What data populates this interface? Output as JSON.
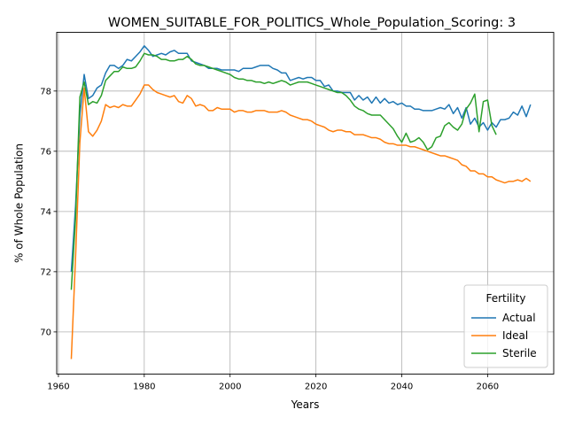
{
  "chart_data": {
    "type": "line",
    "title": "WOMEN_SUITABLE_FOR_POLITICS_Whole_Population_Scoring: 3",
    "xlabel": "Years",
    "ylabel": "% of Whole Population",
    "xlim": [
      1959.6,
      2075.4
    ],
    "ylim": [
      68.6,
      79.95
    ],
    "xticks": [
      1960,
      1980,
      2000,
      2020,
      2040,
      2060
    ],
    "yticks": [
      70,
      72,
      74,
      76,
      78
    ],
    "grid": true,
    "legend": {
      "title": "Fertility",
      "position": "lower right"
    },
    "series": [
      {
        "name": "Actual",
        "color": "#1f77b4",
        "points": [
          [
            1963,
            72.0
          ],
          [
            1964,
            74.2
          ],
          [
            1965,
            77.2
          ],
          [
            1966,
            78.55
          ],
          [
            1967,
            77.75
          ],
          [
            1968,
            77.85
          ],
          [
            1969,
            78.1
          ],
          [
            1970,
            78.2
          ],
          [
            1971,
            78.6
          ],
          [
            1972,
            78.85
          ],
          [
            1973,
            78.85
          ],
          [
            1974,
            78.75
          ],
          [
            1975,
            78.85
          ],
          [
            1976,
            79.05
          ],
          [
            1977,
            79.0
          ],
          [
            1978,
            79.15
          ],
          [
            1979,
            79.3
          ],
          [
            1980,
            79.5
          ],
          [
            1981,
            79.35
          ],
          [
            1982,
            79.15
          ],
          [
            1983,
            79.2
          ],
          [
            1984,
            79.25
          ],
          [
            1985,
            79.2
          ],
          [
            1986,
            79.3
          ],
          [
            1987,
            79.35
          ],
          [
            1988,
            79.25
          ],
          [
            1989,
            79.25
          ],
          [
            1990,
            79.25
          ],
          [
            1991,
            79.0
          ],
          [
            1992,
            78.95
          ],
          [
            1993,
            78.9
          ],
          [
            1994,
            78.85
          ],
          [
            1995,
            78.75
          ],
          [
            1996,
            78.75
          ],
          [
            1997,
            78.75
          ],
          [
            1998,
            78.7
          ],
          [
            1999,
            78.7
          ],
          [
            2000,
            78.7
          ],
          [
            2001,
            78.7
          ],
          [
            2002,
            78.65
          ],
          [
            2003,
            78.75
          ],
          [
            2004,
            78.75
          ],
          [
            2005,
            78.75
          ],
          [
            2006,
            78.8
          ],
          [
            2007,
            78.85
          ],
          [
            2008,
            78.85
          ],
          [
            2009,
            78.85
          ],
          [
            2010,
            78.75
          ],
          [
            2011,
            78.7
          ],
          [
            2012,
            78.6
          ],
          [
            2013,
            78.6
          ],
          [
            2014,
            78.35
          ],
          [
            2015,
            78.4
          ],
          [
            2016,
            78.45
          ],
          [
            2017,
            78.4
          ],
          [
            2018,
            78.45
          ],
          [
            2019,
            78.45
          ],
          [
            2020,
            78.35
          ],
          [
            2021,
            78.35
          ],
          [
            2022,
            78.15
          ],
          [
            2023,
            78.2
          ],
          [
            2024,
            78.0
          ],
          [
            2025,
            78.0
          ],
          [
            2026,
            77.95
          ],
          [
            2027,
            77.95
          ],
          [
            2028,
            77.95
          ],
          [
            2029,
            77.7
          ],
          [
            2030,
            77.85
          ],
          [
            2031,
            77.7
          ],
          [
            2032,
            77.8
          ],
          [
            2033,
            77.6
          ],
          [
            2034,
            77.8
          ],
          [
            2035,
            77.6
          ],
          [
            2036,
            77.75
          ],
          [
            2037,
            77.6
          ],
          [
            2038,
            77.65
          ],
          [
            2039,
            77.55
          ],
          [
            2040,
            77.6
          ],
          [
            2041,
            77.5
          ],
          [
            2042,
            77.5
          ],
          [
            2043,
            77.4
          ],
          [
            2044,
            77.4
          ],
          [
            2045,
            77.35
          ],
          [
            2046,
            77.35
          ],
          [
            2047,
            77.35
          ],
          [
            2048,
            77.4
          ],
          [
            2049,
            77.45
          ],
          [
            2050,
            77.4
          ],
          [
            2051,
            77.55
          ],
          [
            2052,
            77.25
          ],
          [
            2053,
            77.45
          ],
          [
            2054,
            77.1
          ],
          [
            2055,
            77.45
          ],
          [
            2056,
            76.9
          ],
          [
            2057,
            77.1
          ],
          [
            2058,
            76.8
          ],
          [
            2059,
            76.95
          ],
          [
            2060,
            76.7
          ],
          [
            2061,
            76.95
          ],
          [
            2062,
            76.8
          ],
          [
            2063,
            77.05
          ],
          [
            2064,
            77.05
          ],
          [
            2065,
            77.1
          ],
          [
            2066,
            77.3
          ],
          [
            2067,
            77.2
          ],
          [
            2068,
            77.5
          ],
          [
            2069,
            77.15
          ],
          [
            2070,
            77.55
          ]
        ]
      },
      {
        "name": "Ideal",
        "color": "#ff7f0e",
        "points": [
          [
            1963,
            69.1
          ],
          [
            1964,
            72.5
          ],
          [
            1965,
            76.3
          ],
          [
            1966,
            78.1
          ],
          [
            1967,
            76.65
          ],
          [
            1968,
            76.5
          ],
          [
            1969,
            76.7
          ],
          [
            1970,
            77.0
          ],
          [
            1971,
            77.55
          ],
          [
            1972,
            77.45
          ],
          [
            1973,
            77.5
          ],
          [
            1974,
            77.45
          ],
          [
            1975,
            77.55
          ],
          [
            1976,
            77.5
          ],
          [
            1977,
            77.5
          ],
          [
            1978,
            77.7
          ],
          [
            1979,
            77.9
          ],
          [
            1980,
            78.2
          ],
          [
            1981,
            78.2
          ],
          [
            1982,
            78.05
          ],
          [
            1983,
            77.95
          ],
          [
            1984,
            77.9
          ],
          [
            1985,
            77.85
          ],
          [
            1986,
            77.8
          ],
          [
            1987,
            77.85
          ],
          [
            1988,
            77.65
          ],
          [
            1989,
            77.6
          ],
          [
            1990,
            77.85
          ],
          [
            1991,
            77.75
          ],
          [
            1992,
            77.5
          ],
          [
            1993,
            77.55
          ],
          [
            1994,
            77.5
          ],
          [
            1995,
            77.35
          ],
          [
            1996,
            77.35
          ],
          [
            1997,
            77.45
          ],
          [
            1998,
            77.4
          ],
          [
            1999,
            77.4
          ],
          [
            2000,
            77.4
          ],
          [
            2001,
            77.3
          ],
          [
            2002,
            77.35
          ],
          [
            2003,
            77.35
          ],
          [
            2004,
            77.3
          ],
          [
            2005,
            77.3
          ],
          [
            2006,
            77.35
          ],
          [
            2007,
            77.35
          ],
          [
            2008,
            77.35
          ],
          [
            2009,
            77.3
          ],
          [
            2010,
            77.3
          ],
          [
            2011,
            77.3
          ],
          [
            2012,
            77.35
          ],
          [
            2013,
            77.3
          ],
          [
            2014,
            77.2
          ],
          [
            2015,
            77.15
          ],
          [
            2016,
            77.1
          ],
          [
            2017,
            77.05
          ],
          [
            2018,
            77.05
          ],
          [
            2019,
            77.0
          ],
          [
            2020,
            76.9
          ],
          [
            2021,
            76.85
          ],
          [
            2022,
            76.8
          ],
          [
            2023,
            76.7
          ],
          [
            2024,
            76.65
          ],
          [
            2025,
            76.7
          ],
          [
            2026,
            76.7
          ],
          [
            2027,
            76.65
          ],
          [
            2028,
            76.65
          ],
          [
            2029,
            76.55
          ],
          [
            2030,
            76.55
          ],
          [
            2031,
            76.55
          ],
          [
            2032,
            76.5
          ],
          [
            2033,
            76.45
          ],
          [
            2034,
            76.45
          ],
          [
            2035,
            76.4
          ],
          [
            2036,
            76.3
          ],
          [
            2037,
            76.25
          ],
          [
            2038,
            76.25
          ],
          [
            2039,
            76.2
          ],
          [
            2040,
            76.2
          ],
          [
            2041,
            76.2
          ],
          [
            2042,
            76.15
          ],
          [
            2043,
            76.15
          ],
          [
            2044,
            76.1
          ],
          [
            2045,
            76.05
          ],
          [
            2046,
            76.0
          ],
          [
            2047,
            75.95
          ],
          [
            2048,
            75.9
          ],
          [
            2049,
            75.85
          ],
          [
            2050,
            75.85
          ],
          [
            2051,
            75.8
          ],
          [
            2052,
            75.75
          ],
          [
            2053,
            75.7
          ],
          [
            2054,
            75.55
          ],
          [
            2055,
            75.5
          ],
          [
            2056,
            75.35
          ],
          [
            2057,
            75.35
          ],
          [
            2058,
            75.25
          ],
          [
            2059,
            75.25
          ],
          [
            2060,
            75.15
          ],
          [
            2061,
            75.15
          ],
          [
            2062,
            75.05
          ],
          [
            2063,
            75.0
          ],
          [
            2064,
            74.95
          ],
          [
            2065,
            75.0
          ],
          [
            2066,
            75.0
          ],
          [
            2067,
            75.05
          ],
          [
            2068,
            75.0
          ],
          [
            2069,
            75.1
          ],
          [
            2070,
            75.0
          ]
        ]
      },
      {
        "name": "Sterile",
        "color": "#2ca02c",
        "points": [
          [
            1963,
            71.4
          ],
          [
            1964,
            73.8
          ],
          [
            1965,
            77.8
          ],
          [
            1966,
            78.3
          ],
          [
            1967,
            77.55
          ],
          [
            1968,
            77.65
          ],
          [
            1969,
            77.6
          ],
          [
            1970,
            77.85
          ],
          [
            1971,
            78.35
          ],
          [
            1972,
            78.5
          ],
          [
            1973,
            78.65
          ],
          [
            1974,
            78.65
          ],
          [
            1975,
            78.8
          ],
          [
            1976,
            78.75
          ],
          [
            1977,
            78.75
          ],
          [
            1978,
            78.8
          ],
          [
            1979,
            79.0
          ],
          [
            1980,
            79.25
          ],
          [
            1981,
            79.2
          ],
          [
            1982,
            79.2
          ],
          [
            1983,
            79.15
          ],
          [
            1984,
            79.05
          ],
          [
            1985,
            79.05
          ],
          [
            1986,
            79.0
          ],
          [
            1987,
            79.0
          ],
          [
            1988,
            79.05
          ],
          [
            1989,
            79.05
          ],
          [
            1990,
            79.15
          ],
          [
            1991,
            79.05
          ],
          [
            1992,
            78.9
          ],
          [
            1993,
            78.85
          ],
          [
            1994,
            78.85
          ],
          [
            1995,
            78.8
          ],
          [
            1996,
            78.75
          ],
          [
            1997,
            78.7
          ],
          [
            1998,
            78.65
          ],
          [
            1999,
            78.6
          ],
          [
            2000,
            78.55
          ],
          [
            2001,
            78.45
          ],
          [
            2002,
            78.4
          ],
          [
            2003,
            78.4
          ],
          [
            2004,
            78.35
          ],
          [
            2005,
            78.35
          ],
          [
            2006,
            78.3
          ],
          [
            2007,
            78.3
          ],
          [
            2008,
            78.25
          ],
          [
            2009,
            78.3
          ],
          [
            2010,
            78.25
          ],
          [
            2011,
            78.3
          ],
          [
            2012,
            78.35
          ],
          [
            2013,
            78.3
          ],
          [
            2014,
            78.2
          ],
          [
            2015,
            78.25
          ],
          [
            2016,
            78.3
          ],
          [
            2017,
            78.3
          ],
          [
            2018,
            78.3
          ],
          [
            2019,
            78.25
          ],
          [
            2020,
            78.2
          ],
          [
            2021,
            78.15
          ],
          [
            2022,
            78.1
          ],
          [
            2023,
            78.05
          ],
          [
            2024,
            78.0
          ],
          [
            2025,
            77.95
          ],
          [
            2026,
            77.95
          ],
          [
            2027,
            77.85
          ],
          [
            2028,
            77.7
          ],
          [
            2029,
            77.5
          ],
          [
            2030,
            77.4
          ],
          [
            2031,
            77.35
          ],
          [
            2032,
            77.25
          ],
          [
            2033,
            77.2
          ],
          [
            2034,
            77.2
          ],
          [
            2035,
            77.2
          ],
          [
            2036,
            77.05
          ],
          [
            2037,
            76.9
          ],
          [
            2038,
            76.75
          ],
          [
            2039,
            76.5
          ],
          [
            2040,
            76.3
          ],
          [
            2041,
            76.6
          ],
          [
            2042,
            76.3
          ],
          [
            2043,
            76.35
          ],
          [
            2044,
            76.45
          ],
          [
            2045,
            76.3
          ],
          [
            2046,
            76.05
          ],
          [
            2047,
            76.15
          ],
          [
            2048,
            76.45
          ],
          [
            2049,
            76.5
          ],
          [
            2050,
            76.85
          ],
          [
            2051,
            76.95
          ],
          [
            2052,
            76.8
          ],
          [
            2053,
            76.7
          ],
          [
            2054,
            76.9
          ],
          [
            2055,
            77.4
          ],
          [
            2056,
            77.6
          ],
          [
            2057,
            77.9
          ],
          [
            2058,
            76.65
          ],
          [
            2059,
            77.65
          ],
          [
            2060,
            77.7
          ],
          [
            2061,
            76.85
          ],
          [
            2062,
            76.55
          ]
        ]
      }
    ]
  }
}
